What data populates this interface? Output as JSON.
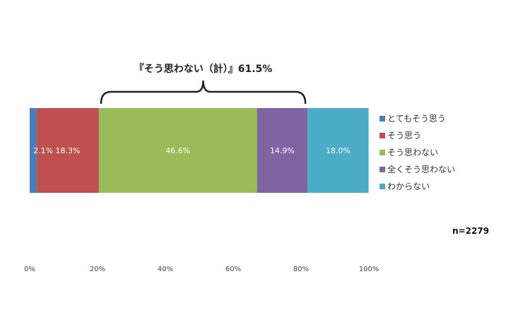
{
  "chart_data": {
    "type": "bar",
    "orientation": "horizontal-stacked-100",
    "annotation": "『そう思わない（計）』61.5%",
    "sample_size": "n=2279",
    "series": [
      {
        "name": "とてもそう思う",
        "value": 2.1,
        "label": "2.1%",
        "color": "#4a7ebb"
      },
      {
        "name": "そう思う",
        "value": 18.3,
        "label": "18.3%",
        "color": "#c0504d"
      },
      {
        "name": "そう思わない",
        "value": 46.6,
        "label": "46.6%",
        "color": "#9bbb59"
      },
      {
        "name": "全くそう思わない",
        "value": 14.9,
        "label": "14.9%",
        "color": "#8064a2"
      },
      {
        "name": "わからない",
        "value": 18.0,
        "label": "18.0%",
        "color": "#4bacc6"
      }
    ],
    "x_ticks": [
      "0%",
      "20%",
      "40%",
      "60%",
      "80%",
      "100%"
    ],
    "xlim": [
      0,
      100
    ],
    "legend": "right",
    "grid": false
  }
}
